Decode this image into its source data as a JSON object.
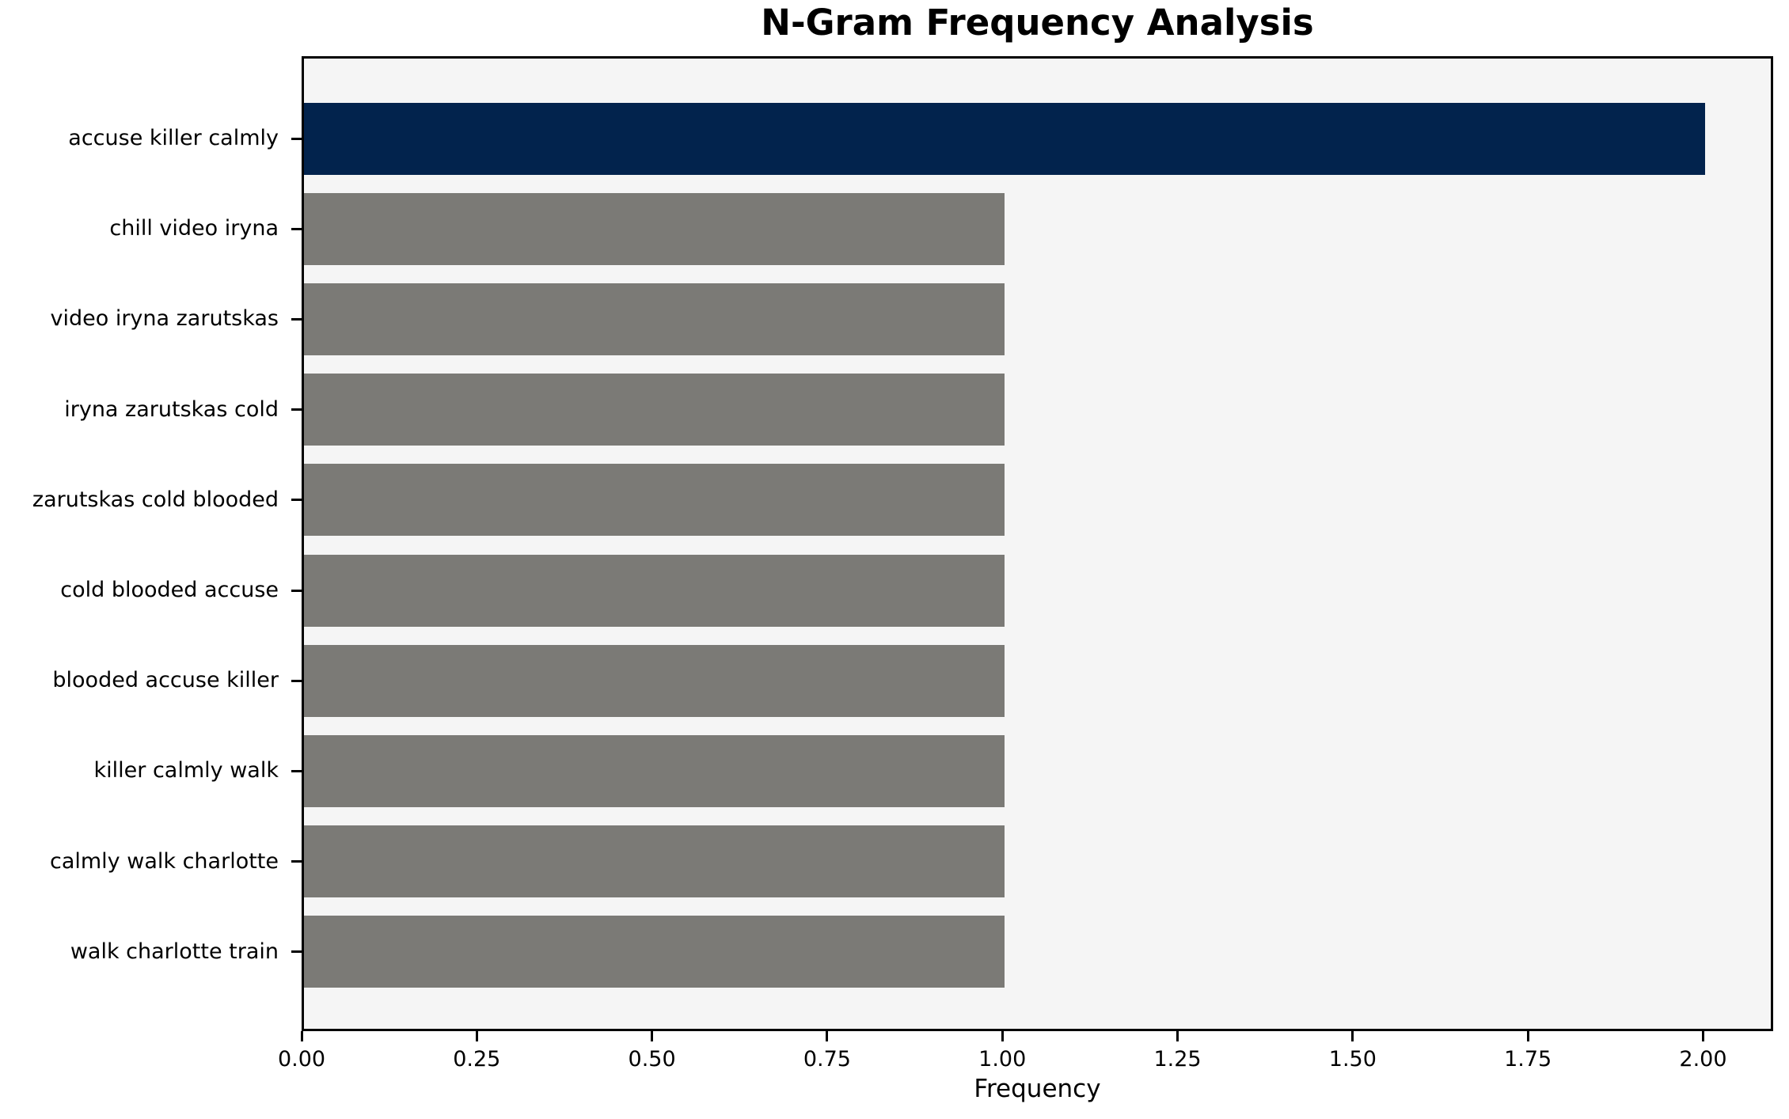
{
  "chart_data": {
    "type": "bar",
    "orientation": "horizontal",
    "title": "N-Gram Frequency Analysis",
    "xlabel": "Frequency",
    "ylabel": "",
    "categories": [
      "accuse killer calmly",
      "chill video iryna",
      "video iryna zarutskas",
      "iryna zarutskas cold",
      "zarutskas cold blooded",
      "cold blooded accuse",
      "blooded accuse killer",
      "killer calmly walk",
      "calmly walk charlotte",
      "walk charlotte train"
    ],
    "values": [
      2.0,
      1.0,
      1.0,
      1.0,
      1.0,
      1.0,
      1.0,
      1.0,
      1.0,
      1.0
    ],
    "bar_colors": [
      "#02234d",
      "#7b7a76",
      "#7b7a76",
      "#7b7a76",
      "#7b7a76",
      "#7b7a76",
      "#7b7a76",
      "#7b7a76",
      "#7b7a76",
      "#7b7a76"
    ],
    "xlim": [
      0,
      2.1
    ],
    "xticks": [
      0.0,
      0.25,
      0.5,
      0.75,
      1.0,
      1.25,
      1.5,
      1.75,
      2.0
    ],
    "xtick_labels": [
      "0.00",
      "0.25",
      "0.50",
      "0.75",
      "1.00",
      "1.25",
      "1.50",
      "1.75",
      "2.00"
    ],
    "grid": false,
    "legend": null,
    "colors": {
      "highlight_bar": "#02234d",
      "default_bar": "#7b7a76",
      "plot_background": "#f5f5f5",
      "figure_background": "#ffffff",
      "axis": "#000000",
      "text": "#000000"
    }
  }
}
